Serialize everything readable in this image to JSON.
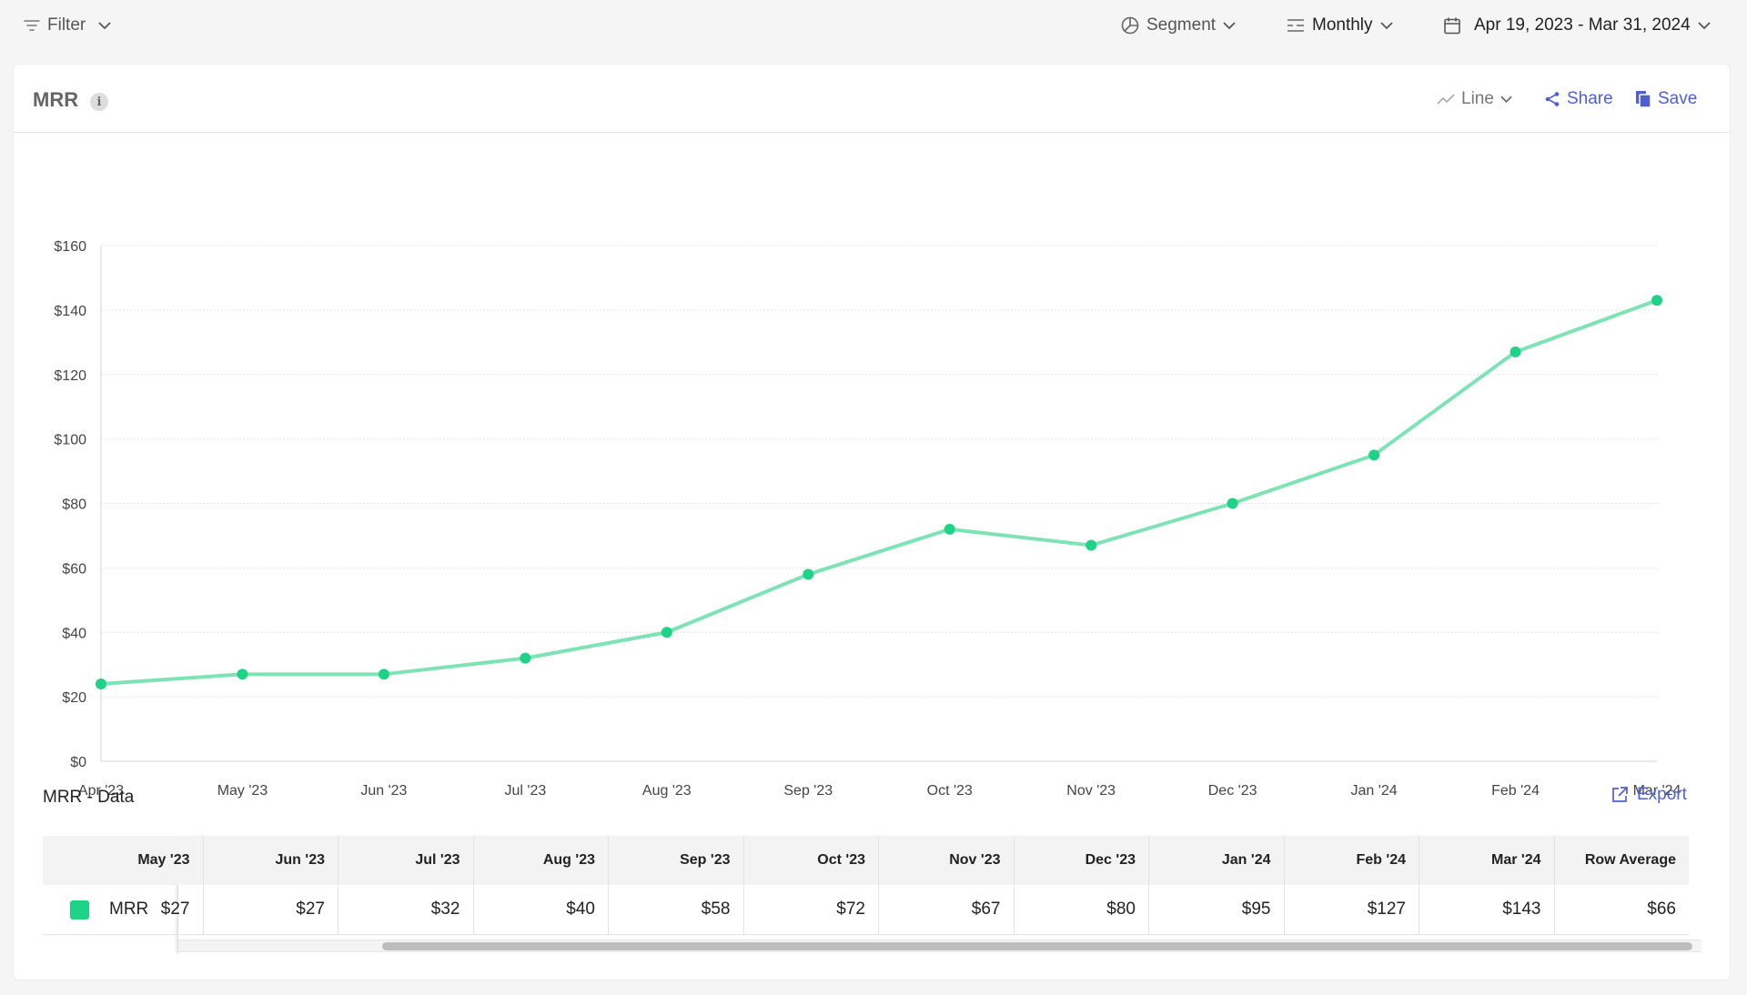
{
  "toolbar": {
    "filter_label": "Filter",
    "segment_label": "Segment",
    "interval_label": "Monthly",
    "date_range_label": "Apr 19, 2023 - Mar 31, 2024"
  },
  "card": {
    "title": "MRR",
    "info_glyph": "i",
    "chart_type_label": "Line",
    "share_label": "Share",
    "save_label": "Save"
  },
  "chart_data": {
    "type": "line",
    "categories": [
      "Apr '23",
      "May '23",
      "Jun '23",
      "Jul '23",
      "Aug '23",
      "Sep '23",
      "Oct '23",
      "Nov '23",
      "Dec '23",
      "Jan '24",
      "Feb '24",
      "Mar '24"
    ],
    "series": [
      {
        "values": [
          24,
          27,
          27,
          32,
          40,
          58,
          72,
          67,
          80,
          95,
          127,
          143
        ],
        "color": "#1ed286"
      }
    ],
    "ylim": [
      0,
      160
    ],
    "yticks": [
      0,
      20,
      40,
      60,
      80,
      100,
      120,
      140,
      160
    ],
    "ytick_labels": [
      "$0",
      "$20",
      "$40",
      "$60",
      "$80",
      "$100",
      "$120",
      "$140",
      "$160"
    ],
    "grid": true,
    "line_color": "#7de3b5",
    "point_color": "#1ed286"
  },
  "data_table": {
    "title": "MRR - Data",
    "export_label": "Export",
    "columns": [
      "May '23",
      "Jun '23",
      "Jul '23",
      "Aug '23",
      "Sep '23",
      "Oct '23",
      "Nov '23",
      "Dec '23",
      "Jan '24",
      "Feb '24",
      "Mar '24",
      "Row Average"
    ],
    "row": {
      "label": "MRR",
      "values": [
        "$27",
        "$27",
        "$32",
        "$40",
        "$58",
        "$72",
        "$67",
        "$80",
        "$95",
        "$127",
        "$143",
        "$66"
      ]
    }
  }
}
